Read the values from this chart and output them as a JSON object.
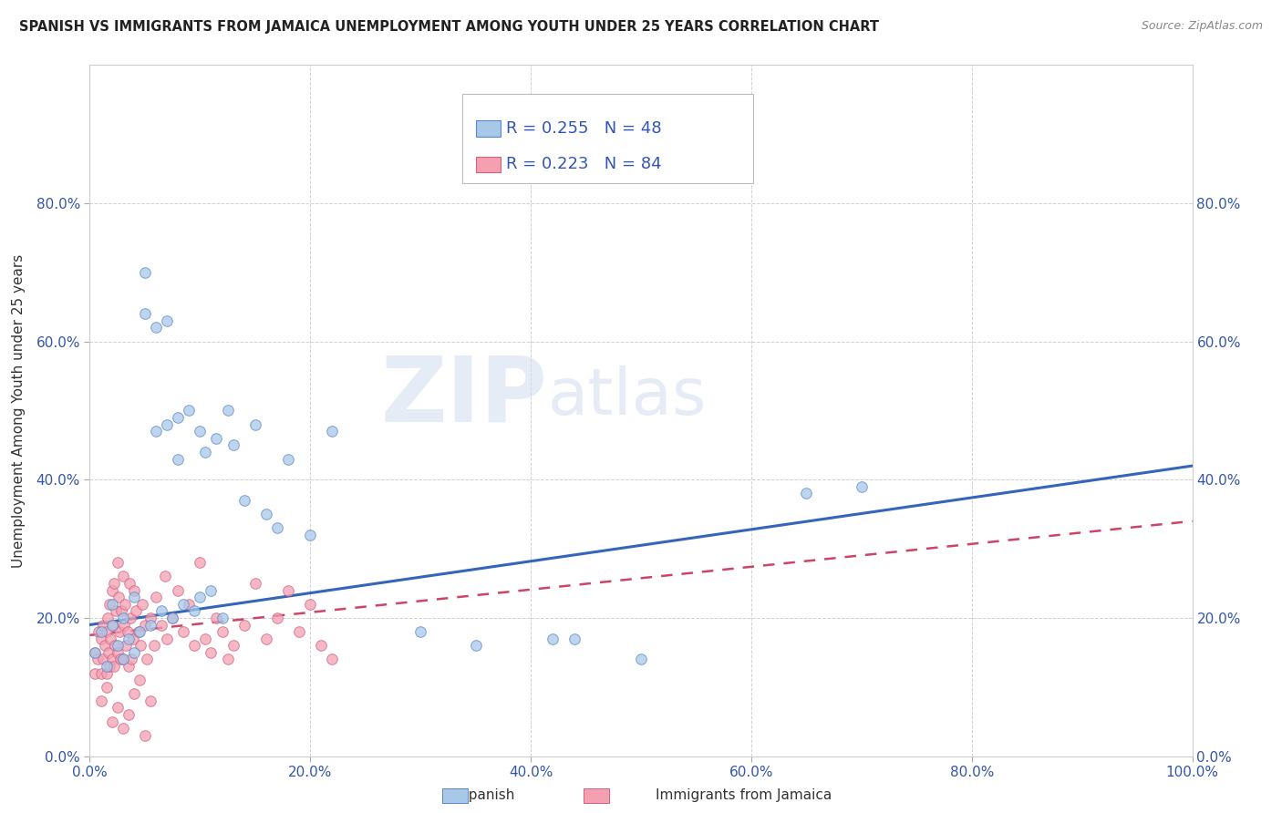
{
  "title": "SPANISH VS IMMIGRANTS FROM JAMAICA UNEMPLOYMENT AMONG YOUTH UNDER 25 YEARS CORRELATION CHART",
  "source": "Source: ZipAtlas.com",
  "ylabel": "Unemployment Among Youth under 25 years",
  "xlim": [
    0,
    1.0
  ],
  "ylim": [
    0,
    1.0
  ],
  "xticks": [
    0.0,
    0.2,
    0.4,
    0.6,
    0.8,
    1.0
  ],
  "yticks": [
    0.0,
    0.2,
    0.4,
    0.6,
    0.8
  ],
  "xtick_labels": [
    "0.0%",
    "20.0%",
    "40.0%",
    "60.0%",
    "80.0%",
    "100.0%"
  ],
  "ytick_labels": [
    "0.0%",
    "20.0%",
    "40.0%",
    "60.0%",
    "80.0%"
  ],
  "blue_color": "#a8c8e8",
  "blue_edge_color": "#5588cc",
  "pink_color": "#f4a0b0",
  "pink_edge_color": "#d06080",
  "blue_line_color": "#3366bb",
  "pink_line_color": "#cc4466",
  "title_color": "#222222",
  "axis_label_color": "#3355aa",
  "background_color": "#ffffff",
  "grid_color": "#cccccc",
  "spanish_scatter_x": [
    0.005,
    0.01,
    0.015,
    0.02,
    0.02,
    0.025,
    0.03,
    0.03,
    0.035,
    0.04,
    0.04,
    0.045,
    0.05,
    0.05,
    0.055,
    0.06,
    0.06,
    0.065,
    0.07,
    0.07,
    0.075,
    0.08,
    0.08,
    0.085,
    0.09,
    0.095,
    0.1,
    0.1,
    0.105,
    0.11,
    0.115,
    0.12,
    0.125,
    0.13,
    0.14,
    0.15,
    0.16,
    0.17,
    0.18,
    0.2,
    0.22,
    0.3,
    0.35,
    0.42,
    0.44,
    0.5,
    0.65,
    0.7
  ],
  "spanish_scatter_y": [
    0.15,
    0.18,
    0.13,
    0.19,
    0.22,
    0.16,
    0.14,
    0.2,
    0.17,
    0.23,
    0.15,
    0.18,
    0.7,
    0.64,
    0.19,
    0.62,
    0.47,
    0.21,
    0.63,
    0.48,
    0.2,
    0.43,
    0.49,
    0.22,
    0.5,
    0.21,
    0.47,
    0.23,
    0.44,
    0.24,
    0.46,
    0.2,
    0.5,
    0.45,
    0.37,
    0.48,
    0.35,
    0.33,
    0.43,
    0.32,
    0.47,
    0.18,
    0.16,
    0.17,
    0.17,
    0.14,
    0.38,
    0.39
  ],
  "jamaica_scatter_x": [
    0.005,
    0.005,
    0.007,
    0.008,
    0.01,
    0.01,
    0.012,
    0.012,
    0.014,
    0.015,
    0.015,
    0.016,
    0.017,
    0.018,
    0.018,
    0.019,
    0.02,
    0.02,
    0.021,
    0.022,
    0.022,
    0.023,
    0.024,
    0.025,
    0.025,
    0.026,
    0.027,
    0.028,
    0.029,
    0.03,
    0.03,
    0.031,
    0.032,
    0.033,
    0.034,
    0.035,
    0.036,
    0.037,
    0.038,
    0.039,
    0.04,
    0.042,
    0.044,
    0.046,
    0.048,
    0.05,
    0.052,
    0.055,
    0.058,
    0.06,
    0.065,
    0.068,
    0.07,
    0.075,
    0.08,
    0.085,
    0.09,
    0.095,
    0.1,
    0.105,
    0.11,
    0.115,
    0.12,
    0.125,
    0.13,
    0.14,
    0.15,
    0.16,
    0.17,
    0.18,
    0.19,
    0.2,
    0.21,
    0.22,
    0.01,
    0.015,
    0.02,
    0.025,
    0.03,
    0.035,
    0.04,
    0.045,
    0.05,
    0.055
  ],
  "jamaica_scatter_y": [
    0.12,
    0.15,
    0.14,
    0.18,
    0.12,
    0.17,
    0.19,
    0.14,
    0.16,
    0.18,
    0.12,
    0.2,
    0.15,
    0.22,
    0.13,
    0.17,
    0.24,
    0.14,
    0.19,
    0.13,
    0.25,
    0.16,
    0.21,
    0.28,
    0.15,
    0.23,
    0.18,
    0.14,
    0.21,
    0.26,
    0.14,
    0.19,
    0.22,
    0.16,
    0.18,
    0.13,
    0.25,
    0.2,
    0.14,
    0.17,
    0.24,
    0.21,
    0.18,
    0.16,
    0.22,
    0.19,
    0.14,
    0.2,
    0.16,
    0.23,
    0.19,
    0.26,
    0.17,
    0.2,
    0.24,
    0.18,
    0.22,
    0.16,
    0.28,
    0.17,
    0.15,
    0.2,
    0.18,
    0.14,
    0.16,
    0.19,
    0.25,
    0.17,
    0.2,
    0.24,
    0.18,
    0.22,
    0.16,
    0.14,
    0.08,
    0.1,
    0.05,
    0.07,
    0.04,
    0.06,
    0.09,
    0.11,
    0.03,
    0.08
  ],
  "blue_trend_x0": 0.0,
  "blue_trend_y0": 0.19,
  "blue_trend_x1": 1.0,
  "blue_trend_y1": 0.42,
  "pink_trend_x0": 0.0,
  "pink_trend_y0": 0.175,
  "pink_trend_x1": 1.0,
  "pink_trend_y1": 0.34
}
